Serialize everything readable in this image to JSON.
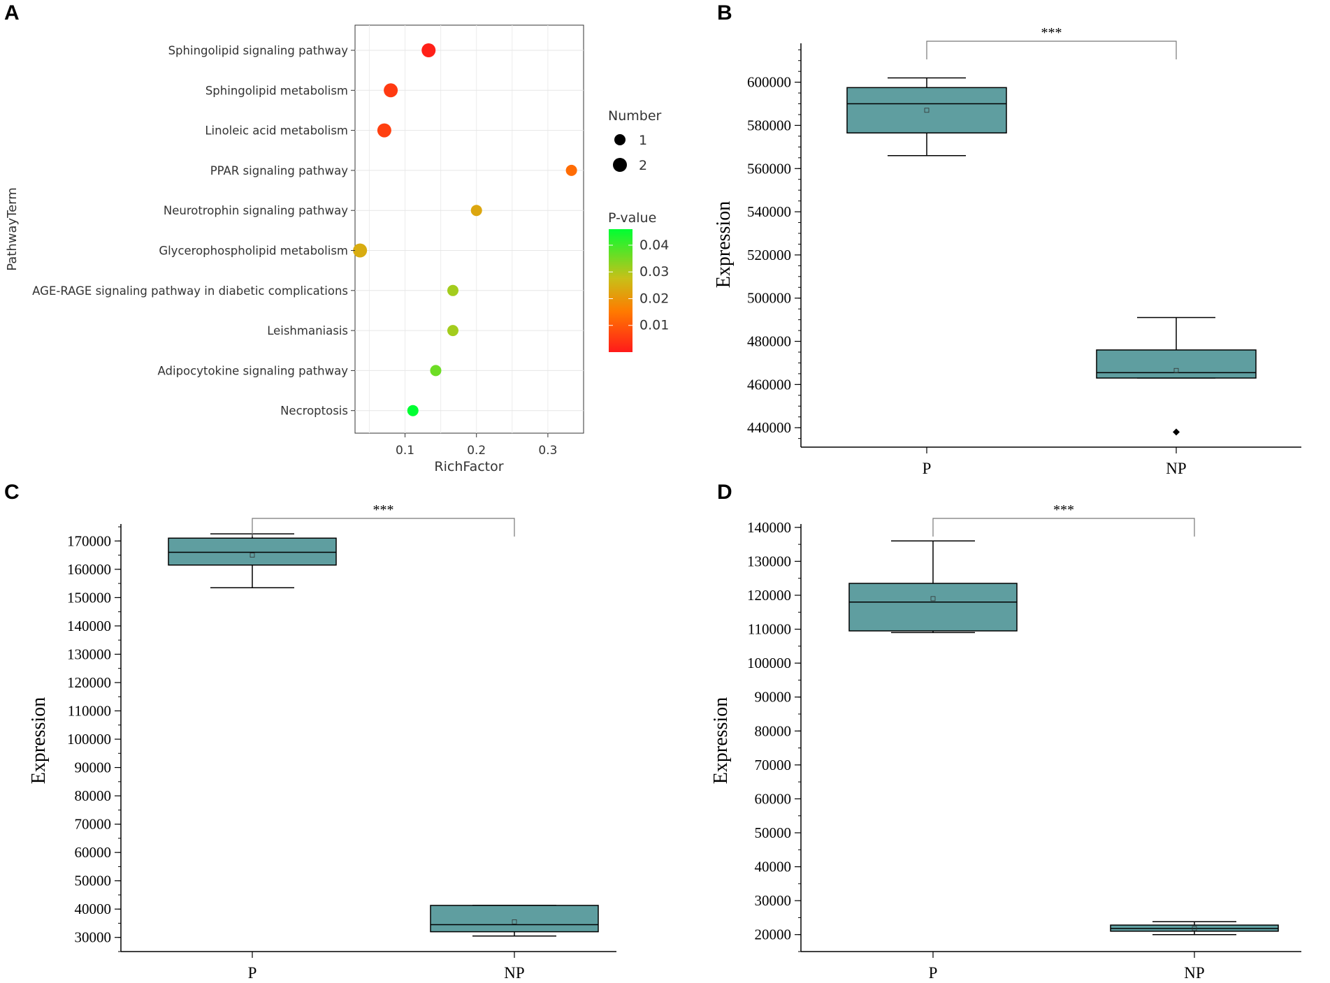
{
  "colors": {
    "box_fill": "#5f9ea0",
    "grid": "#e6e6e6",
    "pvalue_low": "#ff1a1a",
    "pvalue_mid": "#ffa500",
    "pvalue_high": "#00ff33"
  },
  "chart_data": [
    {
      "panel": "A",
      "type": "scatter",
      "title": "",
      "xlabel": "RichFactor",
      "ylabel": "PathwayTerm",
      "xlim": [
        0.03,
        0.35
      ],
      "x_ticks": [
        0.1,
        0.2,
        0.3
      ],
      "x_tick_labels": [
        "0.1",
        "0.2",
        "0.3"
      ],
      "grid": true,
      "points": [
        {
          "term": "Sphingolipid signaling pathway",
          "rich_factor": 0.133,
          "number": 2,
          "p_value": 0.001
        },
        {
          "term": "Sphingolipid metabolism",
          "rich_factor": 0.08,
          "number": 2,
          "p_value": 0.005
        },
        {
          "term": "Linoleic acid metabolism",
          "rich_factor": 0.071,
          "number": 2,
          "p_value": 0.006
        },
        {
          "term": "PPAR signaling pathway",
          "rich_factor": 0.333,
          "number": 1,
          "p_value": 0.013
        },
        {
          "term": "Neurotrophin signaling pathway",
          "rich_factor": 0.2,
          "number": 1,
          "p_value": 0.023
        },
        {
          "term": "Glycerophospholipid metabolism",
          "rich_factor": 0.037,
          "number": 2,
          "p_value": 0.024
        },
        {
          "term": "AGE-RAGE signaling pathway in diabetic complications",
          "rich_factor": 0.167,
          "number": 1,
          "p_value": 0.031
        },
        {
          "term": "Leishmaniasis",
          "rich_factor": 0.167,
          "number": 1,
          "p_value": 0.031
        },
        {
          "term": "Adipocytokine signaling pathway",
          "rich_factor": 0.143,
          "number": 1,
          "p_value": 0.036
        },
        {
          "term": "Necroptosis",
          "rich_factor": 0.111,
          "number": 1,
          "p_value": 0.046
        }
      ],
      "legend_size": {
        "title": "Number",
        "entries": [
          {
            "label": "1",
            "value": 1
          },
          {
            "label": "2",
            "value": 2
          }
        ]
      },
      "legend_color": {
        "title": "P-value",
        "range": [
          0.0,
          0.046
        ],
        "ticks": [
          0.04,
          0.03,
          0.02,
          0.01
        ],
        "tick_labels": [
          "0.04",
          "0.03",
          "0.02",
          "0.01"
        ]
      }
    },
    {
      "panel": "B",
      "type": "box",
      "ylabel": "Expression",
      "xlabel": "",
      "ylim": [
        431000,
        618000
      ],
      "y_ticks": [
        440000,
        460000,
        480000,
        500000,
        520000,
        540000,
        560000,
        580000,
        600000
      ],
      "y_tick_labels": [
        "440000",
        "460000",
        "480000",
        "500000",
        "520000",
        "540000",
        "560000",
        "580000",
        "600000"
      ],
      "minor_step": 5000,
      "significance": "***",
      "groups": [
        {
          "label": "P",
          "whisker_low": 566000,
          "q1": 576500,
          "median": 590000,
          "q3": 597500,
          "whisker_high": 602000,
          "mean": 587000,
          "outliers": []
        },
        {
          "label": "NP",
          "whisker_low": 463000,
          "q1": 463000,
          "median": 465500,
          "q3": 476000,
          "whisker_high": 491000,
          "mean": 466500,
          "outliers": [
            438000
          ]
        }
      ]
    },
    {
      "panel": "C",
      "type": "box",
      "ylabel": "Expression",
      "xlabel": "",
      "ylim": [
        25000,
        176000
      ],
      "y_ticks": [
        30000,
        40000,
        50000,
        60000,
        70000,
        80000,
        90000,
        100000,
        110000,
        120000,
        130000,
        140000,
        150000,
        160000,
        170000
      ],
      "y_tick_labels": [
        "30000",
        "40000",
        "50000",
        "60000",
        "70000",
        "80000",
        "90000",
        "100000",
        "110000",
        "120000",
        "130000",
        "140000",
        "150000",
        "160000",
        "170000"
      ],
      "minor_step": 5000,
      "significance": "***",
      "groups": [
        {
          "label": "P",
          "whisker_low": 153500,
          "q1": 161500,
          "median": 166000,
          "q3": 171000,
          "whisker_high": 172500,
          "mean": 165000,
          "outliers": []
        },
        {
          "label": "NP",
          "whisker_low": 30500,
          "q1": 32000,
          "median": 34500,
          "q3": 41300,
          "whisker_high": 41300,
          "mean": 35500,
          "outliers": []
        }
      ]
    },
    {
      "panel": "D",
      "type": "box",
      "ylabel": "Expression",
      "xlabel": "",
      "ylim": [
        15000,
        141000
      ],
      "y_ticks": [
        20000,
        30000,
        40000,
        50000,
        60000,
        70000,
        80000,
        90000,
        100000,
        110000,
        120000,
        130000,
        140000
      ],
      "y_tick_labels": [
        "20000",
        "30000",
        "40000",
        "50000",
        "60000",
        "70000",
        "80000",
        "90000",
        "100000",
        "110000",
        "120000",
        "130000",
        "140000"
      ],
      "minor_step": 5000,
      "significance": "***",
      "groups": [
        {
          "label": "P",
          "whisker_low": 109000,
          "q1": 109500,
          "median": 118000,
          "q3": 123500,
          "whisker_high": 136000,
          "mean": 119000,
          "outliers": []
        },
        {
          "label": "NP",
          "whisker_low": 20000,
          "q1": 21000,
          "median": 21800,
          "q3": 22800,
          "whisker_high": 23800,
          "mean": 21800,
          "outliers": []
        }
      ]
    }
  ]
}
